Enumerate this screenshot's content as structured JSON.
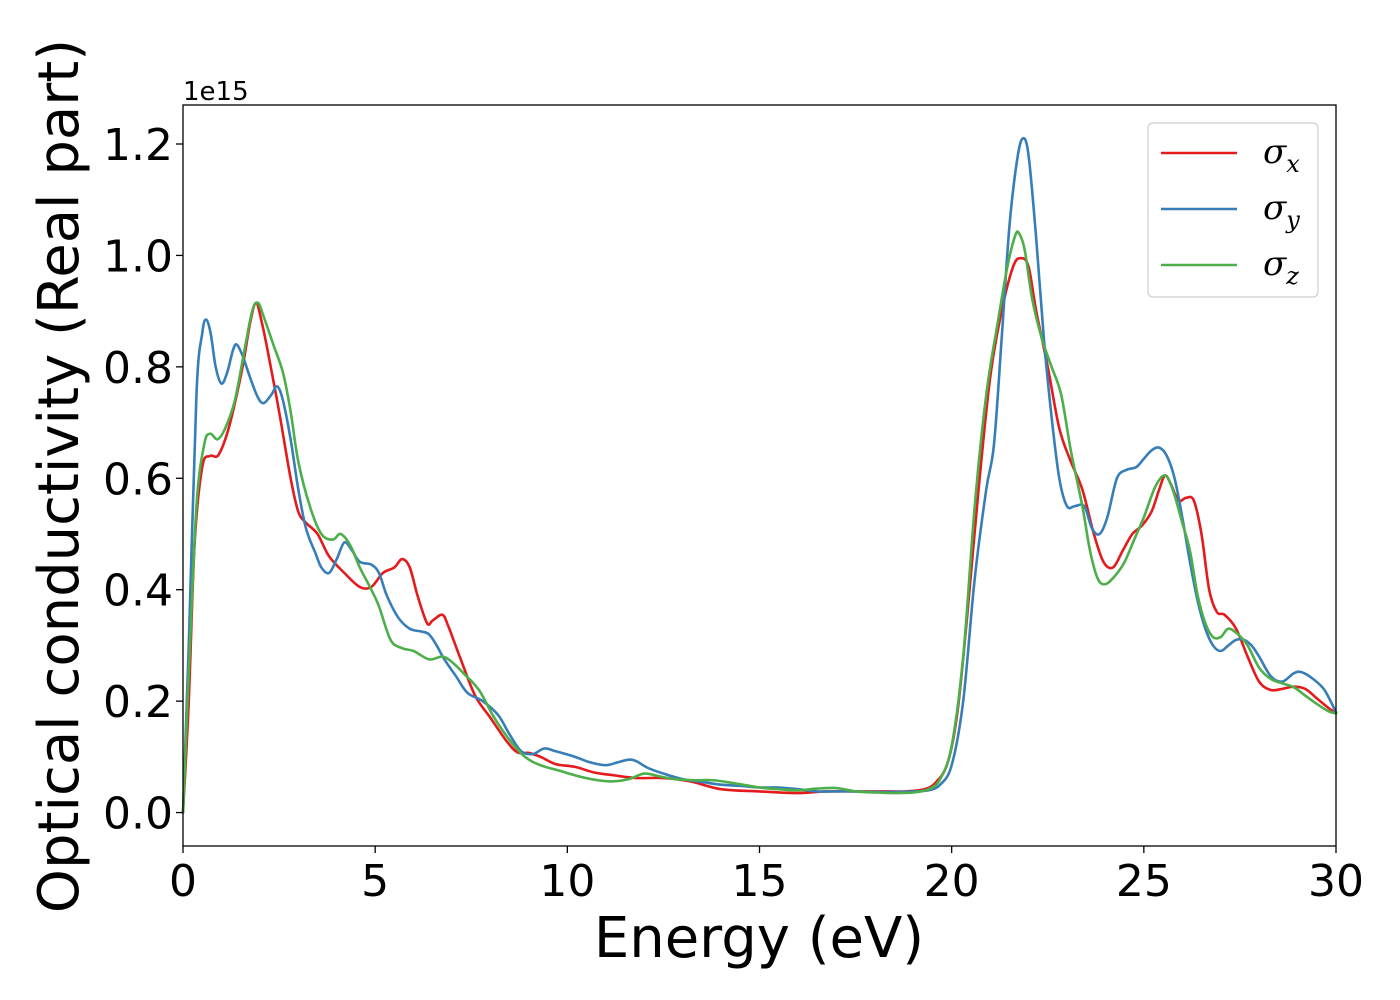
{
  "chart_data": {
    "type": "line",
    "title": "",
    "xlabel": "Energy (eV)",
    "ylabel": "Optical conductivity (Real part)",
    "y_offset_text": "1e15",
    "xlim": [
      0,
      30
    ],
    "ylim": [
      -0.06,
      1.27
    ],
    "xticks": [
      0,
      5,
      10,
      15,
      20,
      25,
      30
    ],
    "xtick_labels": [
      "0",
      "5",
      "10",
      "15",
      "20",
      "25",
      "30"
    ],
    "yticks": [
      0.0,
      0.2,
      0.4,
      0.6,
      0.8,
      1.0,
      1.2
    ],
    "ytick_labels": [
      "0.0",
      "0.2",
      "0.4",
      "0.6",
      "0.8",
      "1.0",
      "1.2"
    ],
    "grid": false,
    "legend_position": "top-right",
    "series": [
      {
        "name": "σ_x",
        "label_main": "σ",
        "label_sub": "x",
        "color": "#e41a1c",
        "points": [
          [
            0,
            0.0
          ],
          [
            0.15,
            0.2
          ],
          [
            0.3,
            0.48
          ],
          [
            0.5,
            0.62
          ],
          [
            0.7,
            0.64
          ],
          [
            0.9,
            0.64
          ],
          [
            1.1,
            0.67
          ],
          [
            1.3,
            0.72
          ],
          [
            1.55,
            0.8
          ],
          [
            1.75,
            0.88
          ],
          [
            1.9,
            0.915
          ],
          [
            2.05,
            0.88
          ],
          [
            2.2,
            0.83
          ],
          [
            2.5,
            0.72
          ],
          [
            2.8,
            0.6
          ],
          [
            3.0,
            0.54
          ],
          [
            3.2,
            0.52
          ],
          [
            3.5,
            0.5
          ],
          [
            3.8,
            0.46
          ],
          [
            4.2,
            0.43
          ],
          [
            4.6,
            0.405
          ],
          [
            4.9,
            0.405
          ],
          [
            5.2,
            0.43
          ],
          [
            5.5,
            0.44
          ],
          [
            5.7,
            0.455
          ],
          [
            5.9,
            0.44
          ],
          [
            6.1,
            0.39
          ],
          [
            6.35,
            0.34
          ],
          [
            6.5,
            0.345
          ],
          [
            6.75,
            0.355
          ],
          [
            6.9,
            0.335
          ],
          [
            7.2,
            0.28
          ],
          [
            7.6,
            0.21
          ],
          [
            8.0,
            0.17
          ],
          [
            8.4,
            0.13
          ],
          [
            8.7,
            0.108
          ],
          [
            9.0,
            0.107
          ],
          [
            9.3,
            0.1
          ],
          [
            9.7,
            0.087
          ],
          [
            10.2,
            0.082
          ],
          [
            10.7,
            0.072
          ],
          [
            11.2,
            0.067
          ],
          [
            11.8,
            0.062
          ],
          [
            12.5,
            0.062
          ],
          [
            13.2,
            0.056
          ],
          [
            14.0,
            0.042
          ],
          [
            15.0,
            0.038
          ],
          [
            16.0,
            0.035
          ],
          [
            16.7,
            0.038
          ],
          [
            17.5,
            0.038
          ],
          [
            18.2,
            0.038
          ],
          [
            18.8,
            0.038
          ],
          [
            19.3,
            0.042
          ],
          [
            19.6,
            0.055
          ],
          [
            19.9,
            0.09
          ],
          [
            20.15,
            0.18
          ],
          [
            20.4,
            0.35
          ],
          [
            20.7,
            0.58
          ],
          [
            21.0,
            0.78
          ],
          [
            21.3,
            0.9
          ],
          [
            21.6,
            0.98
          ],
          [
            21.8,
            0.995
          ],
          [
            22.0,
            0.98
          ],
          [
            22.2,
            0.9
          ],
          [
            22.5,
            0.8
          ],
          [
            22.8,
            0.69
          ],
          [
            23.1,
            0.63
          ],
          [
            23.4,
            0.58
          ],
          [
            23.7,
            0.5
          ],
          [
            23.95,
            0.45
          ],
          [
            24.2,
            0.44
          ],
          [
            24.45,
            0.47
          ],
          [
            24.7,
            0.5
          ],
          [
            24.95,
            0.515
          ],
          [
            25.2,
            0.54
          ],
          [
            25.4,
            0.58
          ],
          [
            25.55,
            0.605
          ],
          [
            25.7,
            0.59
          ],
          [
            25.9,
            0.56
          ],
          [
            26.1,
            0.565
          ],
          [
            26.3,
            0.56
          ],
          [
            26.5,
            0.5
          ],
          [
            26.7,
            0.4
          ],
          [
            26.9,
            0.36
          ],
          [
            27.1,
            0.355
          ],
          [
            27.4,
            0.33
          ],
          [
            27.7,
            0.28
          ],
          [
            28.0,
            0.235
          ],
          [
            28.3,
            0.22
          ],
          [
            28.6,
            0.222
          ],
          [
            28.9,
            0.226
          ],
          [
            29.2,
            0.222
          ],
          [
            29.5,
            0.205
          ],
          [
            29.8,
            0.188
          ],
          [
            30.0,
            0.178
          ]
        ]
      },
      {
        "name": "σ_y",
        "label_main": "σ",
        "label_sub": "y",
        "color": "#377eb8",
        "points": [
          [
            0,
            0.0
          ],
          [
            0.15,
            0.3
          ],
          [
            0.35,
            0.75
          ],
          [
            0.5,
            0.86
          ],
          [
            0.6,
            0.885
          ],
          [
            0.72,
            0.86
          ],
          [
            0.85,
            0.8
          ],
          [
            1.0,
            0.77
          ],
          [
            1.15,
            0.79
          ],
          [
            1.3,
            0.83
          ],
          [
            1.4,
            0.84
          ],
          [
            1.55,
            0.82
          ],
          [
            1.75,
            0.78
          ],
          [
            1.95,
            0.745
          ],
          [
            2.1,
            0.735
          ],
          [
            2.3,
            0.75
          ],
          [
            2.45,
            0.765
          ],
          [
            2.6,
            0.74
          ],
          [
            2.8,
            0.67
          ],
          [
            3.0,
            0.58
          ],
          [
            3.2,
            0.51
          ],
          [
            3.45,
            0.465
          ],
          [
            3.6,
            0.44
          ],
          [
            3.8,
            0.43
          ],
          [
            4.0,
            0.455
          ],
          [
            4.2,
            0.485
          ],
          [
            4.4,
            0.47
          ],
          [
            4.6,
            0.45
          ],
          [
            4.9,
            0.445
          ],
          [
            5.1,
            0.43
          ],
          [
            5.3,
            0.39
          ],
          [
            5.6,
            0.35
          ],
          [
            5.9,
            0.33
          ],
          [
            6.2,
            0.325
          ],
          [
            6.4,
            0.32
          ],
          [
            6.6,
            0.3
          ],
          [
            6.8,
            0.275
          ],
          [
            7.1,
            0.245
          ],
          [
            7.4,
            0.215
          ],
          [
            7.8,
            0.2
          ],
          [
            8.2,
            0.175
          ],
          [
            8.5,
            0.14
          ],
          [
            8.8,
            0.11
          ],
          [
            9.1,
            0.105
          ],
          [
            9.4,
            0.115
          ],
          [
            9.7,
            0.11
          ],
          [
            10.2,
            0.1
          ],
          [
            10.6,
            0.09
          ],
          [
            11.0,
            0.085
          ],
          [
            11.3,
            0.09
          ],
          [
            11.6,
            0.095
          ],
          [
            11.8,
            0.092
          ],
          [
            12.1,
            0.08
          ],
          [
            12.5,
            0.07
          ],
          [
            13.0,
            0.06
          ],
          [
            13.5,
            0.055
          ],
          [
            14.0,
            0.05
          ],
          [
            14.5,
            0.048
          ],
          [
            15.0,
            0.045
          ],
          [
            15.5,
            0.045
          ],
          [
            16.0,
            0.042
          ],
          [
            16.5,
            0.038
          ],
          [
            17.0,
            0.038
          ],
          [
            17.5,
            0.038
          ],
          [
            18.0,
            0.037
          ],
          [
            18.5,
            0.037
          ],
          [
            19.0,
            0.038
          ],
          [
            19.4,
            0.04
          ],
          [
            19.7,
            0.05
          ],
          [
            20.0,
            0.085
          ],
          [
            20.3,
            0.2
          ],
          [
            20.6,
            0.42
          ],
          [
            20.9,
            0.58
          ],
          [
            21.1,
            0.66
          ],
          [
            21.3,
            0.85
          ],
          [
            21.5,
            1.05
          ],
          [
            21.7,
            1.17
          ],
          [
            21.85,
            1.21
          ],
          [
            22.0,
            1.18
          ],
          [
            22.2,
            1.03
          ],
          [
            22.4,
            0.85
          ],
          [
            22.6,
            0.71
          ],
          [
            22.8,
            0.6
          ],
          [
            23.0,
            0.55
          ],
          [
            23.2,
            0.55
          ],
          [
            23.45,
            0.55
          ],
          [
            23.65,
            0.51
          ],
          [
            23.85,
            0.5
          ],
          [
            24.05,
            0.53
          ],
          [
            24.3,
            0.6
          ],
          [
            24.55,
            0.615
          ],
          [
            24.8,
            0.62
          ],
          [
            25.0,
            0.635
          ],
          [
            25.2,
            0.65
          ],
          [
            25.4,
            0.655
          ],
          [
            25.6,
            0.64
          ],
          [
            25.8,
            0.6
          ],
          [
            26.0,
            0.53
          ],
          [
            26.2,
            0.45
          ],
          [
            26.4,
            0.38
          ],
          [
            26.6,
            0.33
          ],
          [
            26.8,
            0.3
          ],
          [
            27.0,
            0.29
          ],
          [
            27.2,
            0.3
          ],
          [
            27.4,
            0.31
          ],
          [
            27.6,
            0.31
          ],
          [
            27.8,
            0.3
          ],
          [
            28.0,
            0.28
          ],
          [
            28.3,
            0.245
          ],
          [
            28.6,
            0.235
          ],
          [
            28.9,
            0.25
          ],
          [
            29.1,
            0.252
          ],
          [
            29.4,
            0.24
          ],
          [
            29.7,
            0.22
          ],
          [
            30.0,
            0.18
          ]
        ]
      },
      {
        "name": "σ_z",
        "label_main": "σ",
        "label_sub": "z",
        "color": "#4daf4a",
        "points": [
          [
            0,
            0.0
          ],
          [
            0.15,
            0.25
          ],
          [
            0.35,
            0.55
          ],
          [
            0.55,
            0.66
          ],
          [
            0.7,
            0.68
          ],
          [
            0.9,
            0.67
          ],
          [
            1.1,
            0.69
          ],
          [
            1.35,
            0.74
          ],
          [
            1.6,
            0.83
          ],
          [
            1.8,
            0.9
          ],
          [
            1.95,
            0.915
          ],
          [
            2.1,
            0.89
          ],
          [
            2.35,
            0.84
          ],
          [
            2.6,
            0.79
          ],
          [
            2.8,
            0.72
          ],
          [
            3.0,
            0.63
          ],
          [
            3.3,
            0.55
          ],
          [
            3.6,
            0.5
          ],
          [
            3.9,
            0.49
          ],
          [
            4.1,
            0.5
          ],
          [
            4.35,
            0.48
          ],
          [
            4.6,
            0.44
          ],
          [
            4.9,
            0.4
          ],
          [
            5.1,
            0.37
          ],
          [
            5.4,
            0.31
          ],
          [
            5.7,
            0.295
          ],
          [
            6.0,
            0.29
          ],
          [
            6.4,
            0.275
          ],
          [
            6.75,
            0.28
          ],
          [
            7.0,
            0.27
          ],
          [
            7.3,
            0.25
          ],
          [
            7.7,
            0.22
          ],
          [
            8.1,
            0.17
          ],
          [
            8.5,
            0.13
          ],
          [
            8.9,
            0.1
          ],
          [
            9.3,
            0.085
          ],
          [
            9.8,
            0.075
          ],
          [
            10.3,
            0.065
          ],
          [
            10.8,
            0.058
          ],
          [
            11.2,
            0.056
          ],
          [
            11.6,
            0.06
          ],
          [
            12.0,
            0.07
          ],
          [
            12.4,
            0.065
          ],
          [
            12.8,
            0.06
          ],
          [
            13.3,
            0.058
          ],
          [
            13.8,
            0.058
          ],
          [
            14.4,
            0.052
          ],
          [
            15.0,
            0.045
          ],
          [
            15.5,
            0.042
          ],
          [
            16.0,
            0.04
          ],
          [
            16.5,
            0.043
          ],
          [
            17.0,
            0.044
          ],
          [
            17.5,
            0.038
          ],
          [
            18.0,
            0.036
          ],
          [
            18.5,
            0.035
          ],
          [
            19.0,
            0.036
          ],
          [
            19.4,
            0.042
          ],
          [
            19.7,
            0.06
          ],
          [
            20.0,
            0.12
          ],
          [
            20.3,
            0.28
          ],
          [
            20.6,
            0.55
          ],
          [
            20.9,
            0.75
          ],
          [
            21.2,
            0.88
          ],
          [
            21.45,
            0.98
          ],
          [
            21.65,
            1.035
          ],
          [
            21.75,
            1.04
          ],
          [
            21.9,
            1.01
          ],
          [
            22.1,
            0.92
          ],
          [
            22.35,
            0.85
          ],
          [
            22.6,
            0.8
          ],
          [
            22.85,
            0.75
          ],
          [
            23.1,
            0.65
          ],
          [
            23.4,
            0.55
          ],
          [
            23.6,
            0.47
          ],
          [
            23.8,
            0.42
          ],
          [
            24.0,
            0.41
          ],
          [
            24.25,
            0.425
          ],
          [
            24.5,
            0.45
          ],
          [
            24.75,
            0.49
          ],
          [
            25.0,
            0.53
          ],
          [
            25.3,
            0.585
          ],
          [
            25.55,
            0.605
          ],
          [
            25.75,
            0.58
          ],
          [
            26.0,
            0.52
          ],
          [
            26.2,
            0.47
          ],
          [
            26.4,
            0.39
          ],
          [
            26.6,
            0.34
          ],
          [
            26.8,
            0.315
          ],
          [
            27.0,
            0.315
          ],
          [
            27.2,
            0.33
          ],
          [
            27.45,
            0.32
          ],
          [
            27.7,
            0.3
          ],
          [
            28.0,
            0.26
          ],
          [
            28.3,
            0.24
          ],
          [
            28.6,
            0.232
          ],
          [
            28.9,
            0.225
          ],
          [
            29.2,
            0.21
          ],
          [
            29.5,
            0.195
          ],
          [
            29.8,
            0.182
          ],
          [
            30.0,
            0.178
          ]
        ]
      }
    ]
  }
}
